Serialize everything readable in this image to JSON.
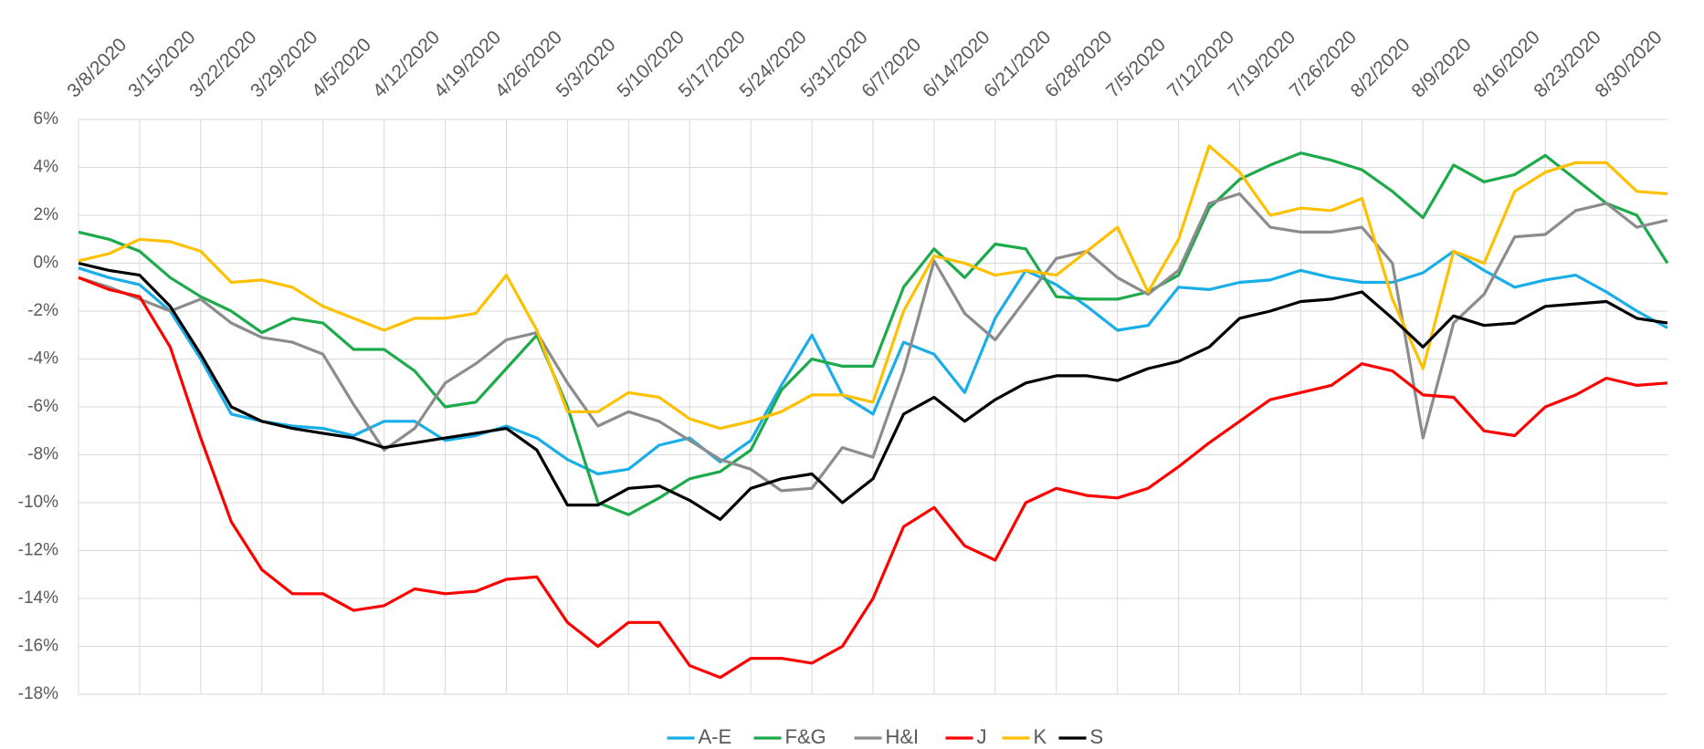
{
  "chart_data": {
    "type": "line",
    "categories": [
      "3/8/2020",
      null,
      "3/15/2020",
      null,
      "3/22/2020",
      null,
      "3/29/2020",
      null,
      "4/5/2020",
      null,
      "4/12/2020",
      null,
      "4/19/2020",
      null,
      "4/26/2020",
      null,
      "5/3/2020",
      null,
      "5/10/2020",
      null,
      "5/17/2020",
      null,
      "5/24/2020",
      null,
      "5/31/2020",
      null,
      "6/7/2020",
      null,
      "6/14/2020",
      null,
      "6/21/2020",
      null,
      "6/28/2020",
      null,
      "7/5/2020",
      null,
      "7/12/2020",
      null,
      "7/19/2020",
      null,
      "7/26/2020",
      null,
      "8/2/2020",
      null,
      "8/9/2020",
      null,
      "8/16/2020",
      null,
      "8/23/2020",
      null,
      "8/30/2020",
      null,
      null
    ],
    "ylim": [
      -18,
      6
    ],
    "yticks": [
      {
        "value": -18,
        "label": "-18%"
      },
      {
        "value": -16,
        "label": "-16%"
      },
      {
        "value": -14,
        "label": "-14%"
      },
      {
        "value": -12,
        "label": "-12%"
      },
      {
        "value": -10,
        "label": "-10%"
      },
      {
        "value": -8,
        "label": "-8%"
      },
      {
        "value": -6,
        "label": "-6%"
      },
      {
        "value": -4,
        "label": "-4%"
      },
      {
        "value": -2,
        "label": "-2%"
      },
      {
        "value": 0,
        "label": "0%"
      },
      {
        "value": 2,
        "label": "2%"
      },
      {
        "value": 4,
        "label": "4%"
      },
      {
        "value": 6,
        "label": "6%"
      }
    ],
    "grid": true,
    "legend": "bottom",
    "series": [
      {
        "name": "A-E",
        "color": "#1aaee8",
        "values": [
          -0.2,
          -0.6,
          -0.9,
          -2.0,
          -4.0,
          -6.3,
          -6.6,
          -6.8,
          -6.9,
          -7.2,
          -6.6,
          -6.6,
          -7.4,
          -7.2,
          -6.8,
          -7.3,
          -8.2,
          -8.8,
          -8.6,
          -7.6,
          -7.3,
          -8.3,
          -7.4,
          -5.1,
          -3.0,
          -5.5,
          -6.3,
          -3.3,
          -3.8,
          -5.4,
          -2.3,
          -0.3,
          -0.9,
          -1.8,
          -2.8,
          -2.6,
          -1.0,
          -1.1,
          -0.8,
          -0.7,
          -0.3,
          -0.6,
          -0.8,
          -0.8,
          -0.4,
          0.5,
          -0.3,
          -1.0,
          -0.7,
          -0.5,
          -1.2,
          -2.0,
          -2.7
        ]
      },
      {
        "name": "F&G",
        "color": "#1daa4a",
        "values": [
          1.3,
          1.0,
          0.5,
          -0.6,
          -1.4,
          -2.0,
          -2.9,
          -2.3,
          -2.5,
          -3.6,
          -3.6,
          -4.5,
          -6.0,
          -5.8,
          -4.4,
          -3.0,
          -6.0,
          -10.0,
          -10.5,
          -9.8,
          -9.0,
          -8.7,
          -7.8,
          -5.3,
          -4.0,
          -4.3,
          -4.3,
          -1.0,
          0.6,
          -0.6,
          0.8,
          0.6,
          -1.4,
          -1.5,
          -1.5,
          -1.2,
          -0.5,
          2.3,
          3.5,
          4.1,
          4.6,
          4.3,
          3.9,
          3.0,
          1.9,
          4.1,
          3.4,
          3.7,
          4.5,
          3.5,
          2.5,
          2.0,
          0.0
        ]
      },
      {
        "name": "H&I",
        "color": "#8c8c8c",
        "values": [
          -0.6,
          -1.0,
          -1.5,
          -2.0,
          -1.5,
          -2.5,
          -3.1,
          -3.3,
          -3.8,
          -5.9,
          -7.8,
          -6.9,
          -5.0,
          -4.2,
          -3.2,
          -2.9,
          -5.0,
          -6.8,
          -6.2,
          -6.6,
          -7.4,
          -8.2,
          -8.6,
          -9.5,
          -9.4,
          -7.7,
          -8.1,
          -4.5,
          0.1,
          -2.1,
          -3.2,
          -1.5,
          0.2,
          0.5,
          -0.6,
          -1.3,
          -0.3,
          2.5,
          2.9,
          1.5,
          1.3,
          1.3,
          1.5,
          0.0,
          -7.3,
          -2.5,
          -1.3,
          1.1,
          1.2,
          2.2,
          2.5,
          1.5,
          1.8
        ]
      },
      {
        "name": "J",
        "color": "#ff0000",
        "values": [
          -0.6,
          -1.1,
          -1.4,
          -3.5,
          -7.3,
          -10.8,
          -12.8,
          -13.8,
          -13.8,
          -14.5,
          -14.3,
          -13.6,
          -13.8,
          -13.7,
          -13.2,
          -13.1,
          -15.0,
          -16.0,
          -15.0,
          -15.0,
          -16.8,
          -17.3,
          -16.5,
          -16.5,
          -16.7,
          -16.0,
          -14.0,
          -11.0,
          -10.2,
          -11.8,
          -12.4,
          -10.0,
          -9.4,
          -9.7,
          -9.8,
          -9.4,
          -8.5,
          -7.5,
          -6.6,
          -5.7,
          -5.4,
          -5.1,
          -4.2,
          -4.5,
          -5.5,
          -5.6,
          -7.0,
          -7.2,
          -6.0,
          -5.5,
          -4.8,
          -5.1,
          -5.0
        ]
      },
      {
        "name": "K",
        "color": "#ffc000",
        "values": [
          0.1,
          0.4,
          1.0,
          0.9,
          0.5,
          -0.8,
          -0.7,
          -1.0,
          -1.8,
          -2.3,
          -2.8,
          -2.3,
          -2.3,
          -2.1,
          -0.5,
          -2.8,
          -6.2,
          -6.2,
          -5.4,
          -5.6,
          -6.5,
          -6.9,
          -6.6,
          -6.2,
          -5.5,
          -5.5,
          -5.8,
          -2.0,
          0.3,
          0.0,
          -0.5,
          -0.3,
          -0.5,
          0.5,
          1.5,
          -1.2,
          1.0,
          4.9,
          3.8,
          2.0,
          2.3,
          2.2,
          2.7,
          -1.5,
          -4.4,
          0.5,
          0.0,
          3.0,
          3.8,
          4.2,
          4.2,
          3.0,
          2.9
        ]
      },
      {
        "name": "S",
        "color": "#000000",
        "values": [
          0.0,
          -0.3,
          -0.5,
          -1.8,
          -3.8,
          -6.0,
          -6.6,
          -6.9,
          -7.1,
          -7.3,
          -7.7,
          -7.5,
          -7.3,
          -7.1,
          -6.9,
          -7.8,
          -10.1,
          -10.1,
          -9.4,
          -9.3,
          -9.9,
          -10.7,
          -9.4,
          -9.0,
          -8.8,
          -10.0,
          -9.0,
          -6.3,
          -5.6,
          -6.6,
          -5.7,
          -5.0,
          -4.7,
          -4.7,
          -4.9,
          -4.4,
          -4.1,
          -3.5,
          -2.3,
          -2.0,
          -1.6,
          -1.5,
          -1.2,
          -2.3,
          -3.5,
          -2.2,
          -2.6,
          -2.5,
          -1.8,
          -1.7,
          -1.6,
          -2.3,
          -2.5
        ]
      }
    ]
  }
}
